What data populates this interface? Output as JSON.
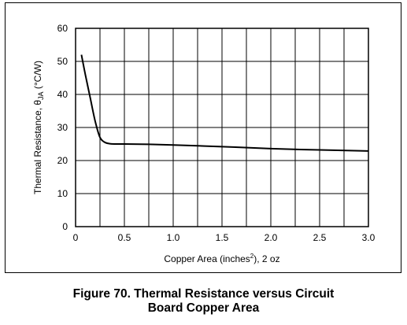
{
  "chart_data": {
    "type": "line",
    "title": "",
    "xlabel_main": "Copper Area (inches",
    "xlabel_sup": "2",
    "xlabel_tail": "), 2 oz",
    "ylabel_main": "Thermal Resistance, θ",
    "ylabel_sub": "JA",
    "ylabel_tail": " (°C/W)",
    "xlim": [
      0,
      3.0
    ],
    "ylim": [
      0,
      60
    ],
    "x_ticks": [
      "0",
      "0.5",
      "1.0",
      "1.5",
      "2.0",
      "2.5",
      "3.0"
    ],
    "x_tick_values": [
      0,
      0.5,
      1.0,
      1.5,
      2.0,
      2.5,
      3.0
    ],
    "y_ticks": [
      "0",
      "10",
      "20",
      "30",
      "40",
      "50",
      "60"
    ],
    "y_tick_values": [
      0,
      10,
      20,
      30,
      40,
      50,
      60
    ],
    "grid": true,
    "x_gridlines": [
      0.25,
      0.5,
      0.75,
      1.0,
      1.25,
      1.5,
      1.75,
      2.0,
      2.25,
      2.5,
      2.75
    ],
    "y_gridlines": [
      10,
      20,
      30,
      40,
      50
    ],
    "series": [
      {
        "x": [
          0.06,
          0.1,
          0.15,
          0.2,
          0.25,
          0.3,
          0.35,
          0.4,
          0.5,
          0.75,
          1.0,
          1.5,
          2.0,
          2.5,
          3.0
        ],
        "y": [
          52,
          46,
          39,
          32,
          27,
          25.5,
          25.1,
          25,
          25,
          24.9,
          24.7,
          24.2,
          23.6,
          23.2,
          22.9
        ]
      }
    ]
  },
  "caption": {
    "line1": "Figure 70. Thermal Resistance versus Circuit",
    "line2": "Board Copper Area"
  }
}
